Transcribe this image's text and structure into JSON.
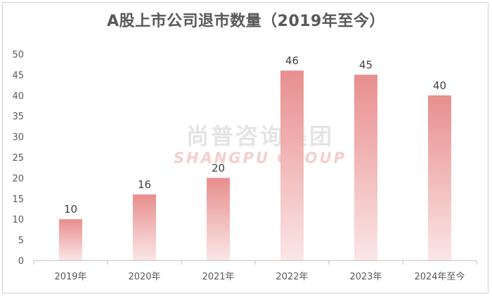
{
  "watermark": {
    "cn": "尚普咨询集团",
    "en": "SHANGPU GROUP"
  },
  "colors": {
    "bar_top": "#e88e8e",
    "bar_bottom": "#fbe6e6",
    "axis": "#bfbfbf",
    "text": "#595959"
  },
  "chart_data": {
    "type": "bar",
    "title": "A股上市公司退市数量（2019年至今）",
    "xlabel": "",
    "ylabel": "",
    "categories": [
      "2019年",
      "2020年",
      "2021年",
      "2022年",
      "2023年",
      "2024年至今"
    ],
    "values": [
      10,
      16,
      20,
      46,
      45,
      40
    ],
    "ylim": [
      0,
      50
    ],
    "yticks": [
      0,
      5,
      10,
      15,
      20,
      25,
      30,
      35,
      40,
      45,
      50
    ],
    "grid": false,
    "legend": "none"
  }
}
